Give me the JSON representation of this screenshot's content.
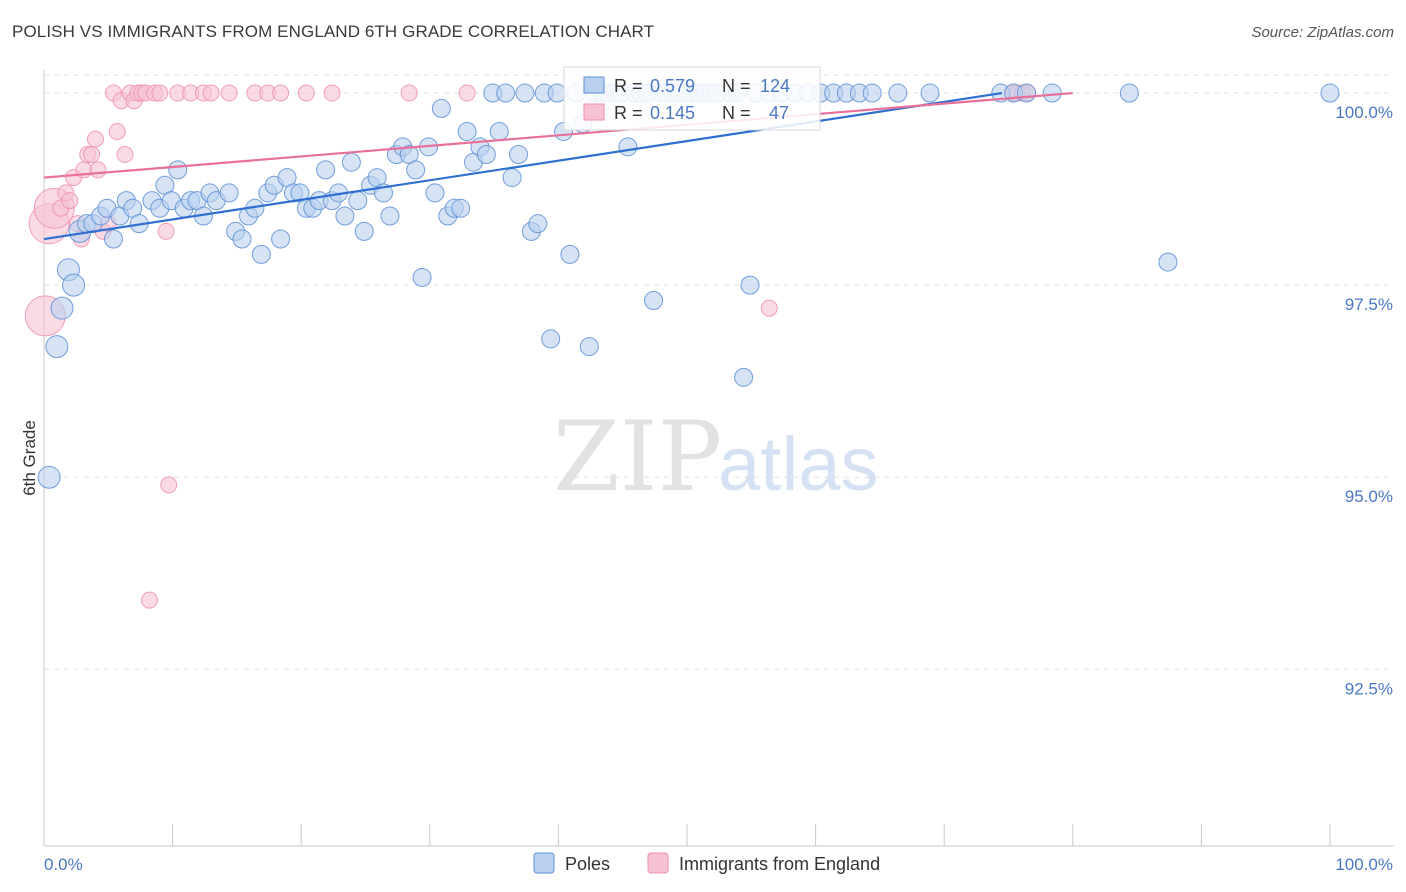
{
  "title": "POLISH VS IMMIGRANTS FROM ENGLAND 6TH GRADE CORRELATION CHART",
  "source": "Source: ZipAtlas.com",
  "watermark": {
    "zip": "ZIP",
    "atlas": "atlas"
  },
  "colors": {
    "poles": "#5b8fd6",
    "england": "#ee8fae",
    "poles_line": "#2f6fcf",
    "england_line": "#e8709a",
    "axis_text": "#4a78c2"
  },
  "stats": [
    {
      "r_label": "R =",
      "r": "0.579",
      "n_label": "N =",
      "n": "124"
    },
    {
      "r_label": "R =",
      "r": "0.145",
      "n_label": "N =",
      "n": "47"
    }
  ],
  "legend": [
    "Poles",
    "Immigrants from England"
  ],
  "chart_data": {
    "type": "scatter",
    "title": "POLISH VS IMMIGRANTS FROM ENGLAND 6TH GRADE CORRELATION CHART",
    "xlabel": "",
    "ylabel": "6th Grade",
    "xlim": [
      0,
      100
    ],
    "ylim": [
      90.2,
      100.3
    ],
    "x_ticks": [
      "0.0%",
      "100.0%"
    ],
    "y_ticks": [
      {
        "value": 100.0,
        "label": "100.0%"
      },
      {
        "value": 97.5,
        "label": "97.5%"
      },
      {
        "value": 95.0,
        "label": "95.0%"
      },
      {
        "value": 92.5,
        "label": "92.5%"
      }
    ],
    "grid": true,
    "legend_position": "bottom-center",
    "series": [
      {
        "name": "Poles",
        "color": "#5b8fd6",
        "R": 0.579,
        "N": 124,
        "trend": [
          [
            0,
            98.1
          ],
          [
            74.5,
            100.0
          ]
        ],
        "points": [
          [
            0.4,
            95.0
          ],
          [
            1.0,
            96.7
          ],
          [
            1.4,
            97.2
          ],
          [
            1.9,
            97.7
          ],
          [
            2.3,
            97.5
          ],
          [
            2.8,
            98.2
          ],
          [
            3.3,
            98.3
          ],
          [
            3.8,
            98.3
          ],
          [
            4.4,
            98.4
          ],
          [
            4.9,
            98.5
          ],
          [
            5.4,
            98.1
          ],
          [
            5.9,
            98.4
          ],
          [
            6.4,
            98.6
          ],
          [
            6.9,
            98.5
          ],
          [
            7.4,
            98.3
          ],
          [
            8.4,
            98.6
          ],
          [
            9.0,
            98.5
          ],
          [
            9.4,
            98.8
          ],
          [
            9.9,
            98.6
          ],
          [
            10.4,
            99.0
          ],
          [
            10.9,
            98.5
          ],
          [
            11.4,
            98.6
          ],
          [
            11.9,
            98.6
          ],
          [
            12.4,
            98.4
          ],
          [
            12.9,
            98.7
          ],
          [
            13.4,
            98.6
          ],
          [
            14.4,
            98.7
          ],
          [
            14.9,
            98.2
          ],
          [
            15.4,
            98.1
          ],
          [
            15.9,
            98.4
          ],
          [
            16.4,
            98.5
          ],
          [
            16.9,
            97.9
          ],
          [
            17.4,
            98.7
          ],
          [
            17.9,
            98.8
          ],
          [
            18.4,
            98.1
          ],
          [
            18.9,
            98.9
          ],
          [
            19.4,
            98.7
          ],
          [
            19.9,
            98.7
          ],
          [
            20.4,
            98.5
          ],
          [
            20.9,
            98.5
          ],
          [
            21.4,
            98.6
          ],
          [
            21.9,
            99.0
          ],
          [
            22.4,
            98.6
          ],
          [
            22.9,
            98.7
          ],
          [
            23.4,
            98.4
          ],
          [
            23.9,
            99.1
          ],
          [
            24.4,
            98.6
          ],
          [
            24.9,
            98.2
          ],
          [
            25.4,
            98.8
          ],
          [
            25.9,
            98.9
          ],
          [
            26.4,
            98.7
          ],
          [
            26.9,
            98.4
          ],
          [
            27.4,
            99.2
          ],
          [
            27.9,
            99.3
          ],
          [
            28.4,
            99.2
          ],
          [
            28.9,
            99.0
          ],
          [
            29.4,
            97.6
          ],
          [
            29.9,
            99.3
          ],
          [
            30.4,
            98.7
          ],
          [
            30.9,
            99.8
          ],
          [
            31.4,
            98.4
          ],
          [
            31.9,
            98.5
          ],
          [
            32.4,
            98.5
          ],
          [
            32.9,
            99.5
          ],
          [
            33.4,
            99.1
          ],
          [
            33.9,
            99.3
          ],
          [
            34.4,
            99.2
          ],
          [
            34.9,
            100.0
          ],
          [
            35.4,
            99.5
          ],
          [
            35.9,
            100.0
          ],
          [
            36.4,
            98.9
          ],
          [
            36.9,
            99.2
          ],
          [
            37.4,
            100.0
          ],
          [
            37.9,
            98.2
          ],
          [
            38.4,
            98.3
          ],
          [
            38.9,
            100.0
          ],
          [
            39.4,
            96.8
          ],
          [
            39.9,
            100.0
          ],
          [
            40.4,
            99.5
          ],
          [
            40.9,
            97.9
          ],
          [
            41.4,
            100.0
          ],
          [
            41.9,
            99.6
          ],
          [
            42.4,
            96.7
          ],
          [
            42.9,
            100.0
          ],
          [
            43.4,
            100.0
          ],
          [
            43.9,
            100.0
          ],
          [
            44.4,
            100.0
          ],
          [
            44.9,
            100.0
          ],
          [
            45.4,
            99.3
          ],
          [
            45.9,
            100.0
          ],
          [
            46.4,
            100.0
          ],
          [
            46.9,
            100.0
          ],
          [
            47.4,
            97.3
          ],
          [
            47.9,
            100.0
          ],
          [
            48.4,
            100.0
          ],
          [
            48.9,
            100.0
          ],
          [
            49.4,
            100.0
          ],
          [
            49.9,
            100.0
          ],
          [
            50.4,
            100.0
          ],
          [
            50.9,
            100.0
          ],
          [
            51.4,
            100.0
          ],
          [
            51.9,
            100.0
          ],
          [
            52.4,
            100.0
          ],
          [
            53.4,
            100.0
          ],
          [
            53.9,
            100.0
          ],
          [
            54.4,
            96.3
          ],
          [
            54.9,
            97.5
          ],
          [
            55.4,
            100.0
          ],
          [
            56.4,
            100.0
          ],
          [
            57.4,
            100.0
          ],
          [
            58.4,
            100.0
          ],
          [
            59.4,
            100.0
          ],
          [
            60.4,
            100.0
          ],
          [
            61.4,
            100.0
          ],
          [
            62.4,
            100.0
          ],
          [
            63.4,
            100.0
          ],
          [
            64.4,
            100.0
          ],
          [
            66.4,
            100.0
          ],
          [
            68.9,
            100.0
          ],
          [
            74.4,
            100.0
          ],
          [
            75.4,
            100.0
          ],
          [
            76.4,
            100.0
          ],
          [
            78.4,
            100.0
          ],
          [
            84.4,
            100.0
          ],
          [
            87.4,
            97.8
          ],
          [
            100.0,
            100.0
          ]
        ]
      },
      {
        "name": "Immigrants from England",
        "color": "#ee8fae",
        "R": 0.145,
        "N": 47,
        "trend": [
          [
            0,
            98.9
          ],
          [
            80.0,
            100.0
          ]
        ],
        "points": [
          [
            0.1,
            97.1
          ],
          [
            0.4,
            98.3
          ],
          [
            0.8,
            98.5
          ],
          [
            1.3,
            98.5
          ],
          [
            1.7,
            98.7
          ],
          [
            2.0,
            98.6
          ],
          [
            2.3,
            98.9
          ],
          [
            2.6,
            98.3
          ],
          [
            2.9,
            98.1
          ],
          [
            3.1,
            99.0
          ],
          [
            3.4,
            99.2
          ],
          [
            3.7,
            99.2
          ],
          [
            4.0,
            99.4
          ],
          [
            4.2,
            99.0
          ],
          [
            4.6,
            98.2
          ],
          [
            5.0,
            98.3
          ],
          [
            5.4,
            100.0
          ],
          [
            5.7,
            99.5
          ],
          [
            6.0,
            99.9
          ],
          [
            6.3,
            99.2
          ],
          [
            6.7,
            100.0
          ],
          [
            7.0,
            99.9
          ],
          [
            7.3,
            100.0
          ],
          [
            7.6,
            100.0
          ],
          [
            7.9,
            100.0
          ],
          [
            8.2,
            93.4
          ],
          [
            8.6,
            100.0
          ],
          [
            9.0,
            100.0
          ],
          [
            9.5,
            98.2
          ],
          [
            9.7,
            94.9
          ],
          [
            10.4,
            100.0
          ],
          [
            11.4,
            100.0
          ],
          [
            12.4,
            100.0
          ],
          [
            13.0,
            100.0
          ],
          [
            14.4,
            100.0
          ],
          [
            16.4,
            100.0
          ],
          [
            17.4,
            100.0
          ],
          [
            18.4,
            100.0
          ],
          [
            20.4,
            100.0
          ],
          [
            22.4,
            100.0
          ],
          [
            28.4,
            100.0
          ],
          [
            32.9,
            100.0
          ],
          [
            56.4,
            97.2
          ],
          [
            75.4,
            100.0
          ],
          [
            75.7,
            100.0
          ],
          [
            76.1,
            100.0
          ],
          [
            76.5,
            100.0
          ]
        ]
      }
    ]
  }
}
